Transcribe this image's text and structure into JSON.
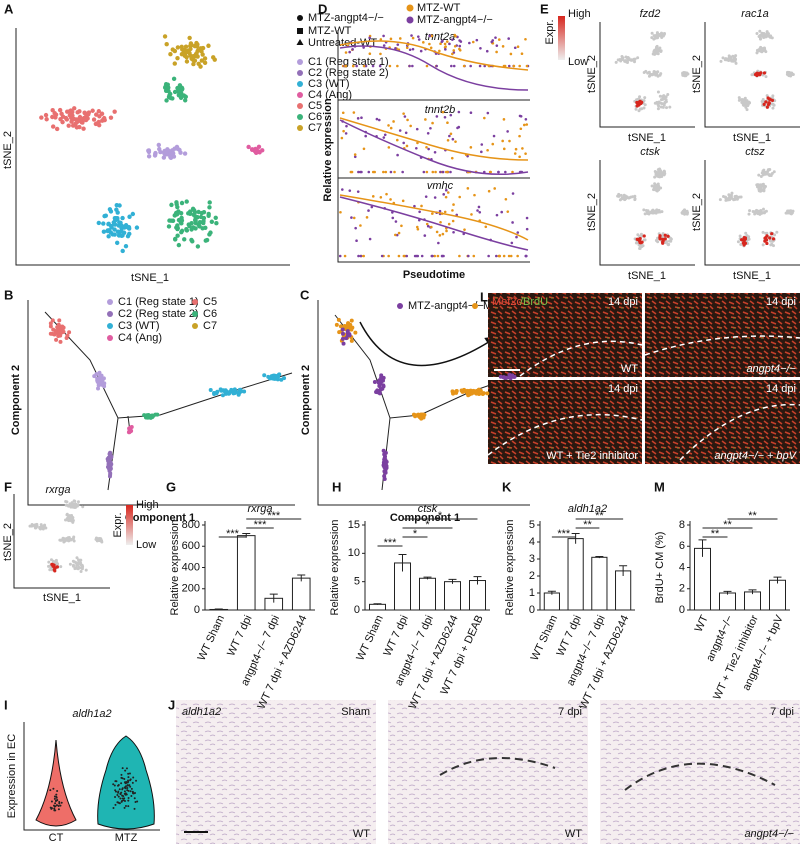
{
  "panel_labels": [
    "A",
    "B",
    "C",
    "D",
    "E",
    "F",
    "G",
    "H",
    "I",
    "J",
    "K",
    "L",
    "M"
  ],
  "panel_a": {
    "x_label": "tSNE_1",
    "y_label": "tSNE_2",
    "sample_legend": [
      "MTZ-angpt4−/−",
      "MTZ-WT",
      "Untreated-WT"
    ],
    "clusters": [
      "C1 (Reg state 1)",
      "C2 (Reg state 2)",
      "C3 (WT)",
      "C4 (Ang)",
      "C5",
      "C6",
      "C7"
    ],
    "cluster_colors": [
      "#b39ddb",
      "#9370b8",
      "#31b0d5",
      "#e05ca0",
      "#e87070",
      "#3bb37a",
      "#c9a227"
    ]
  },
  "panel_b": {
    "x_label": "Component 1",
    "y_label": "Component 2",
    "legend": [
      "C1 (Reg state 1)",
      "C2 (Reg state 2)",
      "C3 (WT)",
      "C4 (Ang)",
      "C5",
      "C6",
      "C7"
    ]
  },
  "panel_c": {
    "x_label": "Component 1",
    "y_label": "Component 2",
    "legend": [
      "MTZ-angpt4−/−",
      "MTZ-WT"
    ],
    "colors": [
      "#7b3fa0",
      "#e69418"
    ]
  },
  "panel_d": {
    "legend": [
      "MTZ-WT",
      "MTZ-angpt4−/−"
    ],
    "genes": [
      "tnnt2a",
      "tnnt2b",
      "vmhc"
    ],
    "y_label": "Relative expression",
    "x_label": "Pseudotime"
  },
  "panel_e": {
    "genes": [
      "fzd2",
      "rac1a",
      "ctsk",
      "ctsz"
    ],
    "x_label": "tSNE_1",
    "y_label": "tSNE_2",
    "scale": [
      "Expr.",
      "High",
      "Low"
    ]
  },
  "panel_f": {
    "gene": "rxrga",
    "x_label": "tSNE_1",
    "y_label": "tSNE_2",
    "scale": [
      "Expr.",
      "High",
      "Low"
    ]
  },
  "panel_i": {
    "gene": "aldh1a2",
    "y_label": "Expression in EC",
    "groups": [
      "CT",
      "MTZ"
    ]
  },
  "panel_j": {
    "gene": "aldh1a2",
    "conditions": [
      "Sham",
      "7 dpi",
      "7 dpi"
    ],
    "genotypes": [
      "WT",
      "WT",
      "angpt4−/−"
    ]
  },
  "panel_l": {
    "stain": [
      "Mef2c",
      "/BrdU"
    ],
    "time": [
      "14 dpi",
      "14 dpi",
      "14 dpi",
      "14 dpi"
    ],
    "groups": [
      "WT",
      "angpt4−/−",
      "WT + Tie2 inhibitor",
      "angpt4−/− + bpV"
    ]
  },
  "chart_data": [
    {
      "type": "bar",
      "title": "rxrga",
      "y_label": "Relative expression",
      "categories": [
        "WT Sham",
        "WT 7 dpi",
        "angpt4−/− 7 dpi",
        "WT 7 dpi + AZD6244"
      ],
      "values": [
        5,
        700,
        110,
        300
      ],
      "errors": [
        5,
        20,
        40,
        30
      ],
      "ylim": [
        0,
        800
      ],
      "yticks": [
        0,
        200,
        400,
        600,
        800
      ],
      "comparisons": [
        {
          "between": [
            0,
            1
          ],
          "label": "***"
        },
        {
          "between": [
            1,
            2
          ],
          "label": "***"
        },
        {
          "between": [
            1,
            3
          ],
          "label": "***"
        }
      ]
    },
    {
      "type": "bar",
      "title": "ctsk",
      "y_label": "Relative expression",
      "categories": [
        "WT Sham",
        "WT 7 dpi",
        "angpt4−/− 7 dpi",
        "WT 7 dpi + AZD6244",
        "WT 7 dpi + DEAB"
      ],
      "values": [
        1,
        8.3,
        5.6,
        5.0,
        5.2
      ],
      "errors": [
        0.1,
        1.5,
        0.2,
        0.4,
        0.7
      ],
      "ylim": [
        0,
        15
      ],
      "yticks": [
        0,
        5,
        10,
        15
      ],
      "comparisons": [
        {
          "between": [
            0,
            1
          ],
          "label": "***"
        },
        {
          "between": [
            1,
            2
          ],
          "label": "*"
        },
        {
          "between": [
            1,
            3
          ],
          "label": "*"
        },
        {
          "between": [
            1,
            4
          ],
          "label": "*"
        }
      ]
    },
    {
      "type": "bar",
      "title": "aldh1a2",
      "y_label": "Relative expression",
      "categories": [
        "WT Sham",
        "WT 7 dpi",
        "angpt4−/− 7 dpi",
        "WT 7 dpi + AZD6244"
      ],
      "values": [
        1,
        4.2,
        3.1,
        2.3
      ],
      "errors": [
        0.1,
        0.3,
        0.05,
        0.3
      ],
      "ylim": [
        0,
        5
      ],
      "yticks": [
        0,
        1,
        2,
        3,
        4,
        5
      ],
      "comparisons": [
        {
          "between": [
            0,
            1
          ],
          "label": "***"
        },
        {
          "between": [
            1,
            2
          ],
          "label": "**"
        },
        {
          "between": [
            1,
            3
          ],
          "label": "**"
        }
      ]
    },
    {
      "type": "bar",
      "title": "",
      "y_label": "BrdU+ CM (%)",
      "categories": [
        "WT",
        "angpt4−/−",
        "WT + Tie2 inhibitor",
        "angpt4−/− + bpV"
      ],
      "values": [
        5.8,
        1.6,
        1.7,
        2.8
      ],
      "errors": [
        0.8,
        0.15,
        0.2,
        0.3
      ],
      "ylim": [
        0,
        8
      ],
      "yticks": [
        0,
        2,
        4,
        6,
        8
      ],
      "comparisons": [
        {
          "between": [
            0,
            1
          ],
          "label": "**"
        },
        {
          "between": [
            0,
            2
          ],
          "label": "**"
        },
        {
          "between": [
            1,
            3
          ],
          "label": "**"
        }
      ]
    }
  ]
}
